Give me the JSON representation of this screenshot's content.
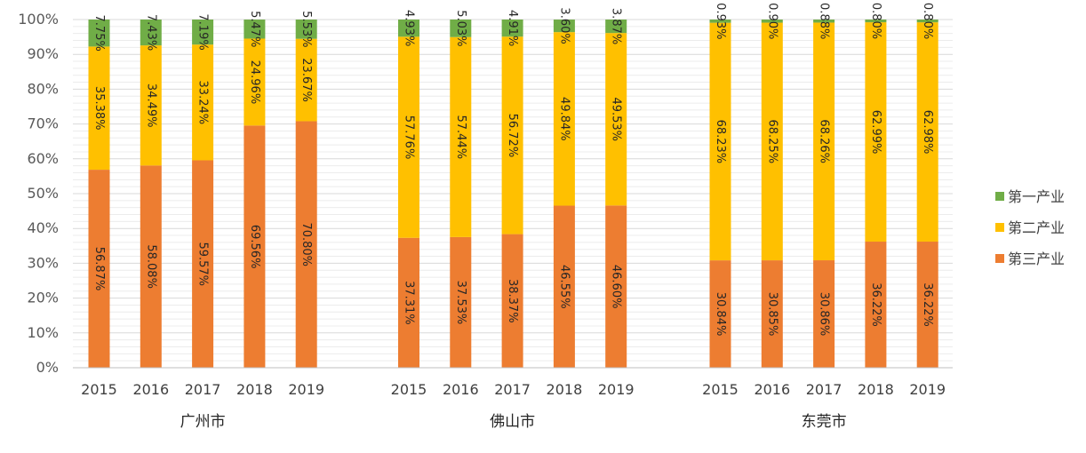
{
  "chart_data": {
    "type": "bar",
    "stacked": true,
    "normalized_percent": true,
    "groups": [
      {
        "name": "广州市",
        "years": [
          "2015",
          "2016",
          "2017",
          "2018",
          "2019"
        ],
        "series": [
          {
            "name": "第三产业",
            "values": [
              56.87,
              58.08,
              59.57,
              69.56,
              70.8
            ],
            "labels": [
              "56.87%",
              "58.08%",
              "59.57%",
              "69.56%",
              "70.80%"
            ]
          },
          {
            "name": "第二产业",
            "values": [
              35.38,
              34.49,
              33.24,
              24.96,
              23.67
            ],
            "labels": [
              "35.38%",
              "34.49%",
              "33.24%",
              "24.96%",
              "23.67%"
            ]
          },
          {
            "name": "第一产业",
            "values": [
              7.75,
              7.43,
              7.19,
              5.47,
              5.53
            ],
            "labels": [
              "7.75%",
              "7.43%",
              "7.19%",
              "5.47%",
              "5.53%"
            ]
          }
        ]
      },
      {
        "name": "佛山市",
        "years": [
          "2015",
          "2016",
          "2017",
          "2018",
          "2019"
        ],
        "series": [
          {
            "name": "第三产业",
            "values": [
              37.31,
              37.53,
              38.37,
              46.55,
              46.6
            ],
            "labels": [
              "37.31%",
              "37.53%",
              "38.37%",
              "46.55%",
              "46.60%"
            ]
          },
          {
            "name": "第二产业",
            "values": [
              57.76,
              57.44,
              56.72,
              49.84,
              49.53
            ],
            "labels": [
              "57.76%",
              "57.44%",
              "56.72%",
              "49.84%",
              "49.53%"
            ]
          },
          {
            "name": "第一产业",
            "values": [
              4.93,
              5.03,
              4.91,
              3.6,
              3.87
            ],
            "labels": [
              "4.93%",
              "5.03%",
              "4.91%",
              "3.60%",
              "3.87%"
            ]
          }
        ]
      },
      {
        "name": "东莞市",
        "years": [
          "2015",
          "2016",
          "2017",
          "2018",
          "2019"
        ],
        "series": [
          {
            "name": "第三产业",
            "values": [
              30.84,
              30.85,
              30.86,
              36.22,
              36.22
            ],
            "labels": [
              "30.84%",
              "30.85%",
              "30.86%",
              "36.22%",
              "36.22%"
            ]
          },
          {
            "name": "第二产业",
            "values": [
              68.23,
              68.25,
              68.26,
              62.99,
              62.98
            ],
            "labels": [
              "68.23%",
              "68.25%",
              "68.26%",
              "62.99%",
              "62.98%"
            ]
          },
          {
            "name": "第一产业",
            "values": [
              0.93,
              0.9,
              0.88,
              0.8,
              0.8
            ],
            "labels": [
              "0.93%",
              "0.90%",
              "0.88%",
              "0.80%",
              "0.80%"
            ]
          }
        ]
      }
    ],
    "y_ticks": [
      "0%",
      "10%",
      "20%",
      "30%",
      "40%",
      "50%",
      "60%",
      "70%",
      "80%",
      "90%",
      "100%"
    ],
    "ylim": [
      0,
      100
    ],
    "grid": true,
    "legend": {
      "placement": "right",
      "entries": [
        {
          "name": "第一产业",
          "color": "#70ad47"
        },
        {
          "name": "第二产业",
          "color": "#ffc000"
        },
        {
          "name": "第三产业",
          "color": "#ed7d31"
        }
      ]
    },
    "colors": {
      "第三产业": "#ed7d31",
      "第二产业": "#ffc000",
      "第一产业": "#70ad47"
    }
  }
}
